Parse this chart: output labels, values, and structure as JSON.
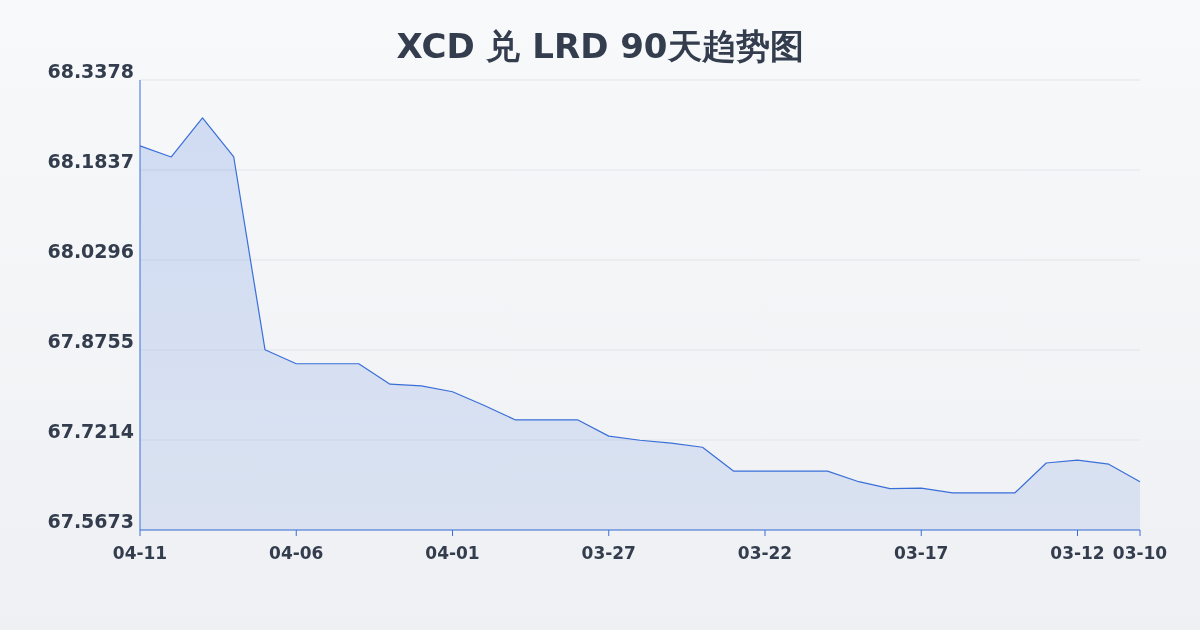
{
  "chart_data": {
    "type": "area",
    "title": "XCD 兑 LRD 90天趋势图",
    "categories": [
      "04-11",
      null,
      null,
      null,
      null,
      "04-06",
      null,
      null,
      null,
      null,
      "04-01",
      null,
      null,
      null,
      null,
      "03-27",
      null,
      null,
      null,
      null,
      "03-22",
      null,
      null,
      null,
      null,
      "03-17",
      null,
      null,
      null,
      null,
      "03-12",
      null,
      "03-10"
    ],
    "series": [
      {
        "color": "#3a6fd8",
        "values": [
          68.225,
          68.206,
          68.273,
          68.206,
          67.876,
          67.852,
          67.852,
          67.852,
          67.817,
          67.814,
          67.804,
          67.781,
          67.756,
          67.756,
          67.756,
          67.728,
          67.721,
          67.716,
          67.709,
          67.668,
          67.668,
          67.668,
          67.668,
          67.65,
          67.638,
          67.639,
          67.631,
          67.631,
          67.631,
          67.682,
          67.687,
          67.68,
          67.65
        ]
      }
    ],
    "ylim": [
      67.5673,
      68.3378
    ],
    "yticks": [
      67.5673,
      67.7214,
      67.8755,
      68.0296,
      68.1837,
      68.3378
    ],
    "grid": "y"
  }
}
